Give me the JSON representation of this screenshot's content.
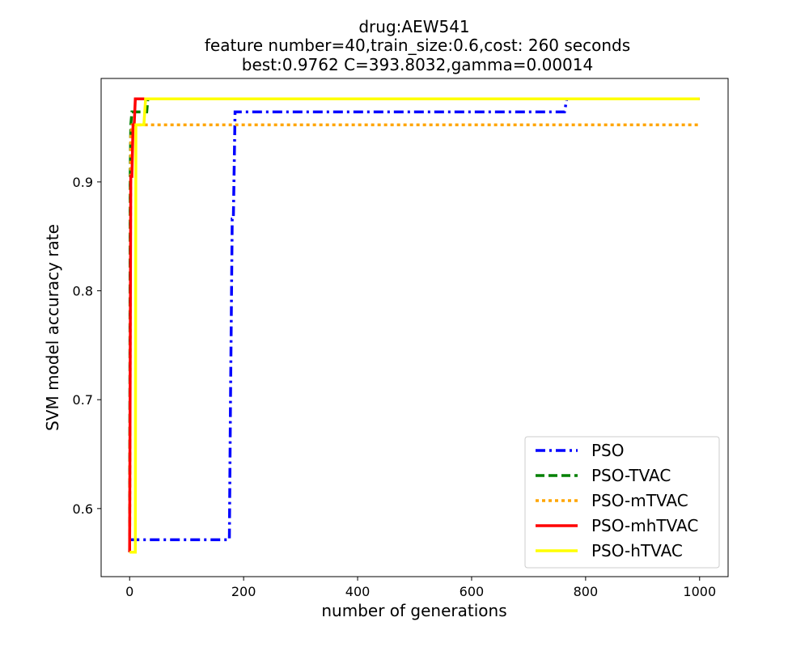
{
  "chart_data": {
    "type": "line",
    "title_lines": [
      "drug:AEW541",
      "feature number=40,train_size:0.6,cost: 260 seconds",
      "best:0.9762  C=393.8032,gamma=0.00014"
    ],
    "xlabel": "number of generations",
    "ylabel": "SVM model accuracy rate",
    "xlim": [
      -50,
      1050
    ],
    "ylim": [
      0.5375,
      0.995
    ],
    "xticks": [
      0,
      200,
      400,
      600,
      800,
      1000
    ],
    "yticks": [
      0.6,
      0.7,
      0.8,
      0.9
    ],
    "xtick_labels": [
      "0",
      "200",
      "400",
      "600",
      "800",
      "1000"
    ],
    "ytick_labels": [
      "0.6",
      "0.7",
      "0.8",
      "0.9"
    ],
    "grid": false,
    "legend_position": "lower-right",
    "series": [
      {
        "name": "PSO",
        "color": "#0000ff",
        "style": "dashdot",
        "x": [
          0,
          175,
          177,
          180,
          182,
          185,
          763,
          767,
          1000
        ],
        "y": [
          0.5714,
          0.5714,
          0.7,
          0.866,
          0.866,
          0.9643,
          0.9643,
          0.9762,
          0.9762
        ]
      },
      {
        "name": "PSO-TVAC",
        "color": "#008000",
        "style": "dashed",
        "x": [
          0,
          1,
          2,
          4,
          30,
          32,
          1000
        ],
        "y": [
          0.56,
          0.905,
          0.952,
          0.9643,
          0.9643,
          0.9762,
          0.9762
        ]
      },
      {
        "name": "PSO-mTVAC",
        "color": "#ffa500",
        "style": "dotted",
        "x": [
          0,
          2,
          4,
          1000
        ],
        "y": [
          0.56,
          0.941,
          0.9524,
          0.9524
        ]
      },
      {
        "name": "PSO-mhTVAC",
        "color": "#ff0000",
        "style": "solid",
        "x": [
          0,
          2,
          4,
          6,
          8,
          10,
          1000
        ],
        "y": [
          0.56,
          0.905,
          0.905,
          0.9524,
          0.9524,
          0.9762,
          0.9762
        ]
      },
      {
        "name": "PSO-hTVAC",
        "color": "#ffff00",
        "style": "solid",
        "x": [
          0,
          10,
          11,
          25,
          28,
          30,
          1000
        ],
        "y": [
          0.56,
          0.56,
          0.9524,
          0.9524,
          0.9762,
          0.9762,
          0.9762
        ]
      }
    ]
  }
}
